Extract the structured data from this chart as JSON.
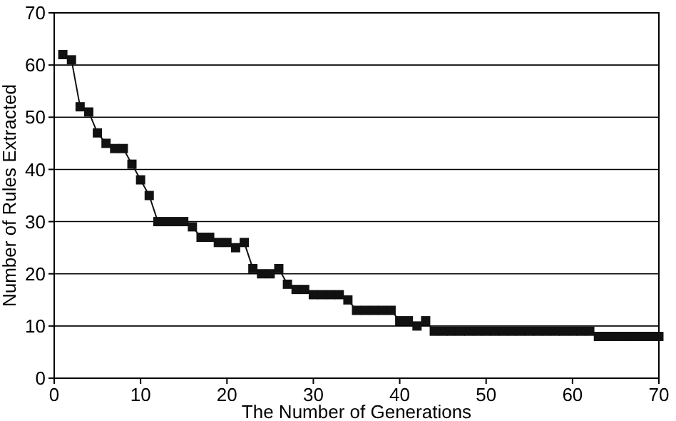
{
  "chart_data": {
    "type": "line",
    "xlabel": "The Number of Generations",
    "ylabel": "Number of Rules Extracted",
    "x": [
      1,
      2,
      3,
      4,
      5,
      6,
      7,
      8,
      9,
      10,
      11,
      12,
      13,
      14,
      15,
      16,
      17,
      18,
      19,
      20,
      21,
      22,
      23,
      24,
      25,
      26,
      27,
      28,
      29,
      30,
      31,
      32,
      33,
      34,
      35,
      36,
      37,
      38,
      39,
      40,
      41,
      42,
      43,
      44,
      45,
      46,
      47,
      48,
      49,
      50,
      51,
      52,
      53,
      54,
      55,
      56,
      57,
      58,
      59,
      60,
      61,
      62,
      63,
      64,
      65,
      66,
      67,
      68,
      69,
      70
    ],
    "series": [
      {
        "color": "#111111",
        "values": [
          62,
          61,
          52,
          51,
          47,
          45,
          44,
          44,
          41,
          38,
          35,
          30,
          30,
          30,
          30,
          29,
          27,
          27,
          26,
          26,
          25,
          26,
          21,
          20,
          20,
          21,
          18,
          17,
          17,
          16,
          16,
          16,
          16,
          15,
          13,
          13,
          13,
          13,
          13,
          11,
          11,
          10,
          11,
          9,
          9,
          9,
          9,
          9,
          9,
          9,
          9,
          9,
          9,
          9,
          9,
          9,
          9,
          9,
          9,
          9,
          9,
          9,
          8,
          8,
          8,
          8,
          8,
          8,
          8,
          8
        ]
      }
    ],
    "xlim": [
      0,
      70
    ],
    "ylim": [
      0,
      70
    ],
    "xticks": [
      0,
      10,
      20,
      30,
      40,
      50,
      60,
      70
    ],
    "yticks": [
      0,
      10,
      20,
      30,
      40,
      50,
      60,
      70
    ],
    "grid": "y",
    "marker": "square",
    "line_style": "solid"
  }
}
